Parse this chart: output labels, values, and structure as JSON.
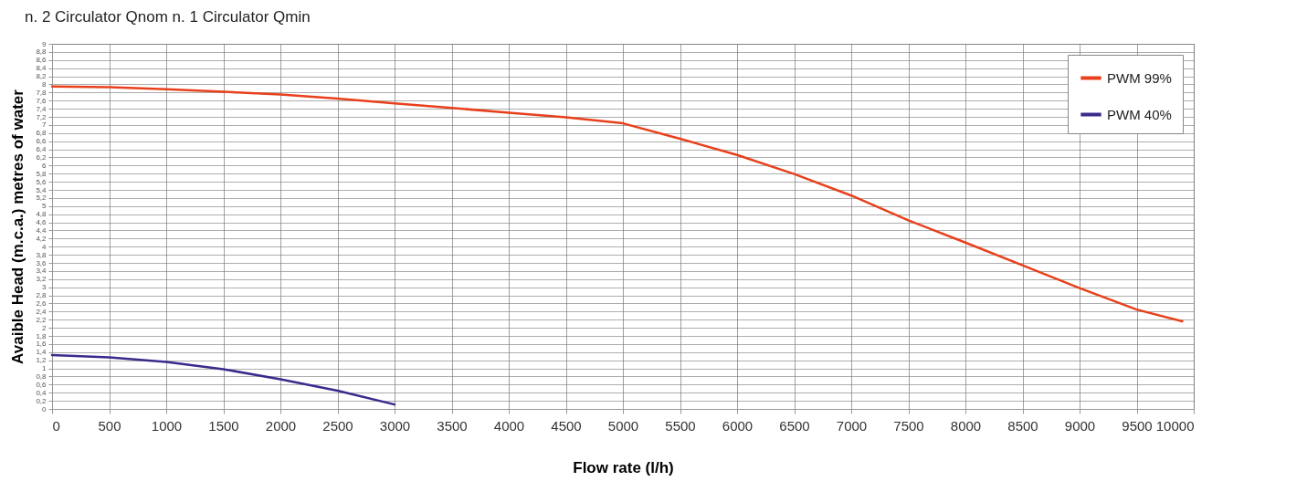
{
  "chart_data": {
    "type": "line",
    "title": "n. 2 Circulator Qnom n. 1 Circulator Qmin",
    "xlabel": "Flow rate (l/h)",
    "ylabel": "Avaible Head (m.c.a.) metres of water",
    "x": [
      0,
      500,
      1000,
      1500,
      2000,
      2500,
      3000,
      3500,
      4000,
      4500,
      5000,
      5500,
      6000,
      6500,
      7000,
      7500,
      8000,
      8500,
      9000,
      9500,
      9900
    ],
    "series": [
      {
        "name": "PWM 99%",
        "color": "#e8401c",
        "values": [
          7.95,
          7.93,
          7.88,
          7.82,
          7.75,
          7.65,
          7.53,
          7.42,
          7.3,
          7.19,
          7.04,
          6.66,
          6.26,
          5.79,
          5.26,
          4.65,
          4.1,
          3.54,
          2.98,
          2.45,
          2.16
        ]
      },
      {
        "name": "PWM 40%",
        "color": "#3a2a8c",
        "x": [
          0,
          250,
          500,
          1000,
          1500,
          2000,
          2500,
          3000
        ],
        "values": [
          1.33,
          1.3,
          1.27,
          1.16,
          0.98,
          0.73,
          0.45,
          0.11
        ]
      }
    ],
    "xlim": [
      0,
      10000
    ],
    "xticks": [
      0,
      500,
      1000,
      1500,
      2000,
      2500,
      3000,
      3500,
      4000,
      4500,
      5000,
      5500,
      6000,
      6500,
      7000,
      7500,
      8000,
      8500,
      9000,
      9500,
      10000
    ],
    "ylim": [
      0,
      9
    ],
    "yticks": [
      0,
      {
        "value": 0.2,
        "label": "0,2"
      },
      {
        "value": 0.4,
        "label": "0,4"
      },
      {
        "value": 0.6,
        "label": "0,6"
      },
      {
        "value": 0.8,
        "label": "0,8"
      },
      1,
      {
        "value": 1.2,
        "label": "1,2"
      },
      {
        "value": 1.4,
        "label": "1,4"
      },
      {
        "value": 1.6,
        "label": "1,6"
      },
      {
        "value": 1.8,
        "label": "1,8"
      },
      2,
      {
        "value": 2.2,
        "label": "2,2"
      },
      {
        "value": 2.4,
        "label": "2,4"
      },
      {
        "value": 2.6,
        "label": "2,6"
      },
      {
        "value": 2.8,
        "label": "2,8"
      },
      3,
      {
        "value": 3.2,
        "label": "3,2"
      },
      {
        "value": 3.4,
        "label": "3,4"
      },
      {
        "value": 3.6,
        "label": "3,6"
      },
      {
        "value": 3.8,
        "label": "3,8"
      },
      4,
      {
        "value": 4.2,
        "label": "4,2"
      },
      {
        "value": 4.4,
        "label": "4,4"
      },
      {
        "value": 4.6,
        "label": "4,6"
      },
      {
        "value": 4.8,
        "label": "4,8"
      },
      5,
      {
        "value": 5.2,
        "label": "5,2"
      },
      {
        "value": 5.4,
        "label": "5,4"
      },
      {
        "value": 5.6,
        "label": "5,6"
      },
      {
        "value": 5.8,
        "label": "5,8"
      },
      6,
      {
        "value": 6.2,
        "label": "6,2"
      },
      {
        "value": 6.4,
        "label": "6,4"
      },
      {
        "value": 6.6,
        "label": "6,6"
      },
      {
        "value": 6.8,
        "label": "6,8"
      },
      7,
      {
        "value": 7.2,
        "label": "7,2"
      },
      {
        "value": 7.4,
        "label": "7,4"
      },
      {
        "value": 7.6,
        "label": "7,6"
      },
      {
        "value": 7.8,
        "label": "7,8"
      },
      8,
      {
        "value": 8.2,
        "label": "8,2"
      },
      {
        "value": 8.4,
        "label": "8,4"
      },
      {
        "value": 8.6,
        "label": "8,6"
      },
      {
        "value": 8.8,
        "label": "8,8"
      },
      9
    ],
    "grid": true,
    "legend": "top right",
    "marker": "none",
    "line_style": "solid"
  }
}
